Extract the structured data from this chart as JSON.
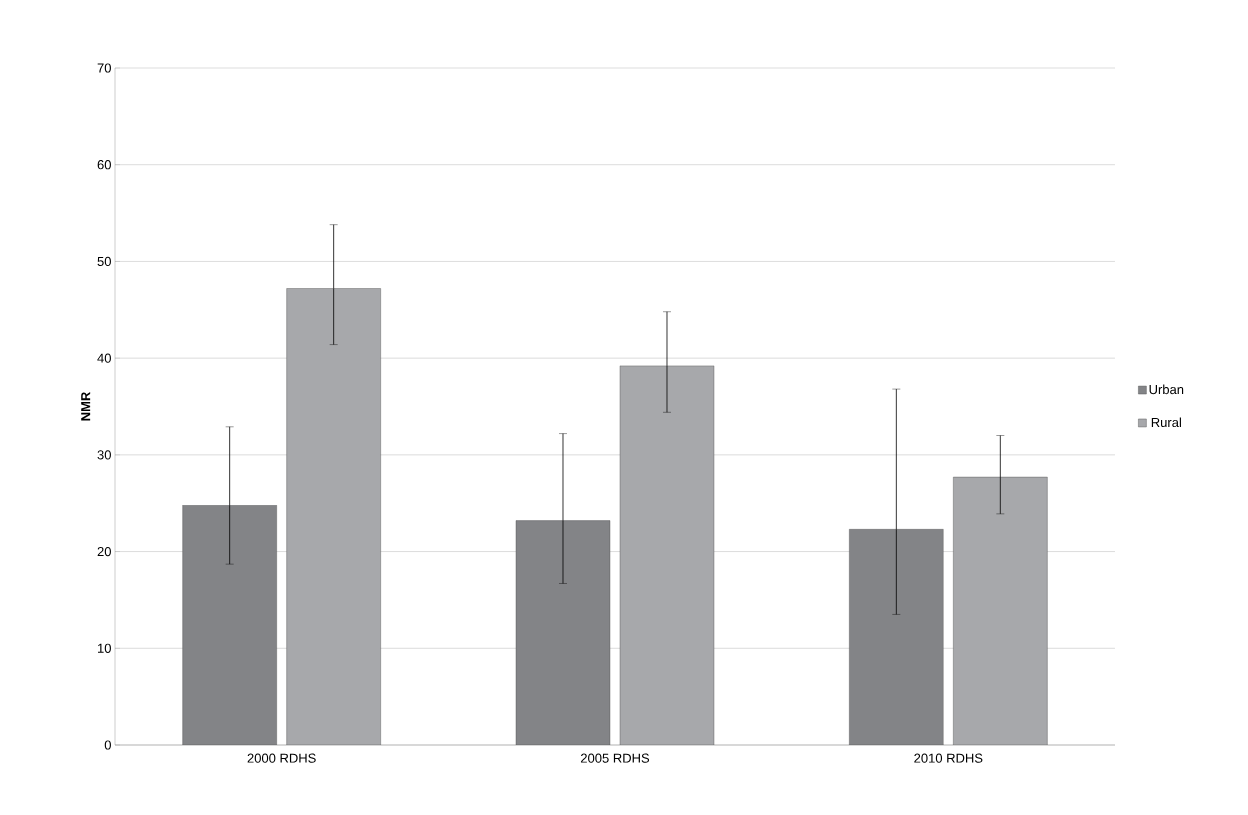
{
  "chart_data": {
    "type": "bar",
    "ylabel": "NMR",
    "categories": [
      "2000 RDHS",
      "2005 RDHS",
      "2010 RDHS"
    ],
    "series": [
      {
        "name": "Urban",
        "color": "#838487",
        "values": [
          24.8,
          23.2,
          22.3
        ],
        "errors": [
          [
            18.7,
            32.9
          ],
          [
            16.7,
            32.2
          ],
          [
            13.5,
            36.8
          ]
        ]
      },
      {
        "name": "Rural",
        "color": "#a7a8ab",
        "values": [
          47.2,
          39.2,
          27.7
        ],
        "errors": [
          [
            41.4,
            53.8
          ],
          [
            34.4,
            44.8
          ],
          [
            23.9,
            32.0
          ]
        ]
      }
    ],
    "ylim": [
      0,
      70
    ],
    "yticks": [
      0,
      10,
      20,
      30,
      40,
      50,
      60,
      70
    ],
    "grid": "y",
    "legend": "right"
  }
}
